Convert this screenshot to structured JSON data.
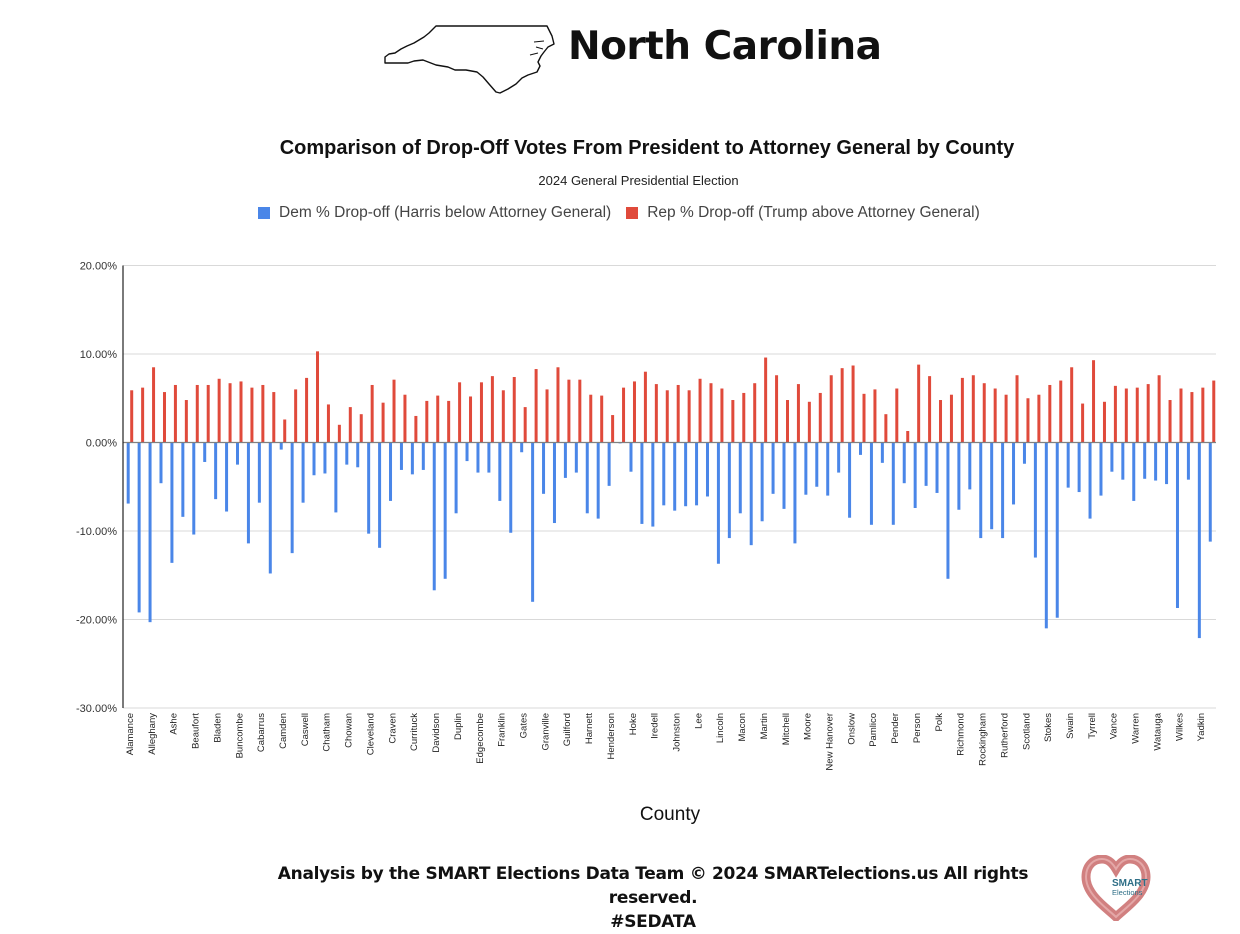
{
  "header": {
    "state_name": "North Carolina",
    "map_icon": "north-carolina-outline-icon"
  },
  "footer": {
    "credit": "Analysis by the SMART Elections Data Team © 2024 SMARTelections.us All rights reserved.",
    "hashtag": "#SEDATA",
    "logo_text_line1": "SMART",
    "logo_text_line2": "Elections"
  },
  "colors": {
    "dem": "#4a86e8",
    "rep": "#e04a3b",
    "grid": "#d9d9d9",
    "zero_line": "#808080",
    "axis": "#222222"
  },
  "chart_data": {
    "type": "bar",
    "title": "Comparison of Drop-Off Votes From President to Attorney General by County",
    "subtitle": "2024 General Presidential Election",
    "xlabel": "County",
    "ylabel": "",
    "ylim": [
      -30,
      20
    ],
    "yticks": [
      20,
      10,
      0,
      -10,
      -20,
      -30
    ],
    "ytick_labels": [
      "20.00%",
      "10.00%",
      "0.00%",
      "-10.00%",
      "-20.00%",
      "-30.00%"
    ],
    "grid": true,
    "legend_position": "top",
    "categories": [
      "Alamance",
      "Alexander",
      "Alleghany",
      "Anson",
      "Ashe",
      "Avery",
      "Beaufort",
      "Bertie",
      "Bladen",
      "Brunswick",
      "Buncombe",
      "Burke",
      "Cabarrus",
      "Caldwell",
      "Camden",
      "Carteret",
      "Caswell",
      "Catawba",
      "Chatham",
      "Cherokee",
      "Chowan",
      "Clay",
      "Cleveland",
      "Columbus",
      "Craven",
      "Cumberland",
      "Currituck",
      "Dare",
      "Davidson",
      "Davie",
      "Duplin",
      "Durham",
      "Edgecombe",
      "Forsyth",
      "Franklin",
      "Gaston",
      "Gates",
      "Graham",
      "Granville",
      "Greene",
      "Guilford",
      "Halifax",
      "Harnett",
      "Haywood",
      "Henderson",
      "Hertford",
      "Hoke",
      "Hyde",
      "Iredell",
      "Jackson",
      "Johnston",
      "Jones",
      "Lee",
      "Lenoir",
      "Lincoln",
      "McDowell",
      "Macon",
      "Madison",
      "Martin",
      "Mecklenburg",
      "Mitchell",
      "Montgomery",
      "Moore",
      "Nash",
      "New Hanover",
      "Northampton",
      "Onslow",
      "Orange",
      "Pamlico",
      "Pasquotank",
      "Pender",
      "Perquimans",
      "Person",
      "Pitt",
      "Polk",
      "Randolph",
      "Richmond",
      "Robeson",
      "Rockingham",
      "Rowan",
      "Rutherford",
      "Sampson",
      "Scotland",
      "Stanly",
      "Stokes",
      "Surry",
      "Swain",
      "Transylvania",
      "Tyrrell",
      "Union",
      "Vance",
      "Wake",
      "Warren",
      "Washington",
      "Watauga",
      "Wayne",
      "Wilkes",
      "Wilson",
      "Yadkin",
      "Yancey"
    ],
    "shown_tick_labels": [
      "Alamance",
      "Alleghany",
      "Ashe",
      "Beaufort",
      "Bladen",
      "Buncombe",
      "Cabarrus",
      "Camden",
      "Caswell",
      "Chatham",
      "Chowan",
      "Cleveland",
      "Craven",
      "Currituck",
      "Davidson",
      "Duplin",
      "Edgecombe",
      "Franklin",
      "Gates",
      "Granville",
      "Guilford",
      "Harnett",
      "Henderson",
      "Hoke",
      "Iredell",
      "Johnston",
      "Lee",
      "Lincoln",
      "Macon",
      "Martin",
      "Mitchell",
      "Moore",
      "New Hanover",
      "Onslow",
      "Pamlico",
      "Pender",
      "Person",
      "Polk",
      "Richmond",
      "Rockingham",
      "Rutherford",
      "Scotland",
      "Stokes",
      "Swain",
      "Tyrrell",
      "Vance",
      "Warren",
      "Watauga",
      "Wilkes",
      "Yadkin"
    ],
    "series": [
      {
        "name": "Dem % Drop-off (Harris below Attorney General)",
        "color": "#4a86e8",
        "values": [
          -6.9,
          -19.2,
          -20.3,
          -4.6,
          -13.6,
          -8.4,
          -10.4,
          -2.2,
          -6.4,
          -7.8,
          -2.5,
          -11.4,
          -6.8,
          -14.8,
          -0.8,
          -12.5,
          -6.8,
          -3.7,
          -3.5,
          -7.9,
          -2.5,
          -2.8,
          -10.3,
          -11.9,
          -6.6,
          -3.1,
          -3.6,
          -3.1,
          -16.7,
          -15.4,
          -8.0,
          -2.1,
          -3.4,
          -3.4,
          -6.6,
          -10.2,
          -1.1,
          -18.0,
          -5.8,
          -9.1,
          -4.0,
          -3.4,
          -8.0,
          -8.6,
          -4.9,
          -0.1,
          -3.3,
          -9.2,
          -9.5,
          -7.1,
          -7.7,
          -7.2,
          -7.1,
          -6.1,
          -13.7,
          -10.8,
          -8.0,
          -11.6,
          -8.9,
          -5.8,
          -7.5,
          -11.4,
          -5.9,
          -5.0,
          -6.0,
          -3.4,
          -8.5,
          -1.4,
          -9.3,
          -2.3,
          -9.3,
          -4.6,
          -7.4,
          -4.9,
          -5.7,
          -15.4,
          -7.6,
          -5.3,
          -10.8,
          -9.8,
          -10.8,
          -7.0,
          -2.4,
          -13.0,
          -21.0,
          -19.8,
          -5.1,
          -5.6,
          -8.6,
          -6.0,
          -3.3,
          -4.2,
          -6.6,
          -4.1,
          -4.3,
          -4.7,
          -18.7,
          -4.2,
          -22.1,
          -11.2
        ]
      },
      {
        "name": "Rep % Drop-off (Trump above Attorney General)",
        "color": "#e04a3b",
        "values": [
          5.9,
          6.2,
          8.5,
          5.7,
          6.5,
          4.8,
          6.5,
          6.5,
          7.2,
          6.7,
          6.9,
          6.2,
          6.5,
          5.7,
          2.6,
          6.0,
          7.3,
          10.3,
          4.3,
          2.0,
          4.0,
          3.2,
          6.5,
          4.5,
          7.1,
          5.4,
          3.0,
          4.7,
          5.3,
          4.7,
          6.8,
          5.2,
          6.8,
          7.5,
          5.9,
          7.4,
          4.0,
          8.3,
          6.0,
          8.5,
          7.1,
          7.1,
          5.4,
          5.3,
          3.1,
          6.2,
          6.9,
          8.0,
          6.6,
          5.9,
          6.5,
          5.9,
          7.2,
          6.7,
          6.1,
          4.8,
          5.6,
          6.7,
          9.6,
          7.6,
          4.8,
          6.6,
          4.6,
          5.6,
          7.6,
          8.4,
          8.7,
          5.5,
          6.0,
          3.2,
          6.1,
          1.3,
          8.8,
          7.5,
          4.8,
          5.4,
          7.3,
          7.6,
          6.7,
          6.1,
          5.4,
          7.6,
          5.0,
          5.4,
          6.5,
          7.0,
          8.5,
          4.4,
          9.3,
          4.6,
          6.4,
          6.1,
          6.2,
          6.6,
          7.6,
          4.8,
          6.1,
          5.7,
          6.2,
          7.0
        ]
      }
    ]
  }
}
